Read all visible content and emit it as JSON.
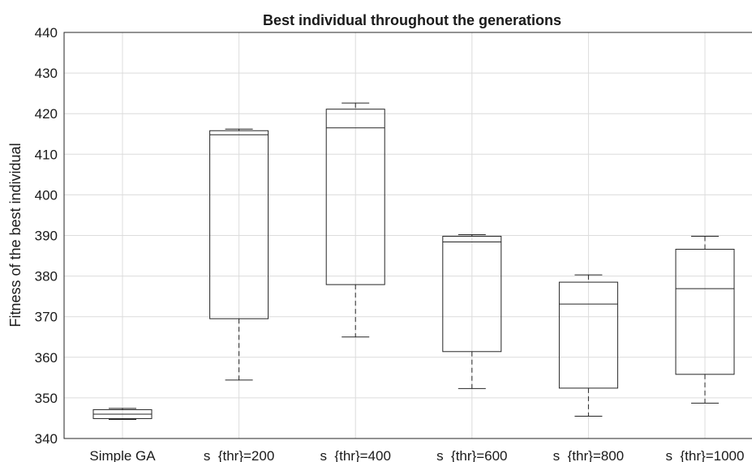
{
  "chart_data": {
    "type": "box",
    "title": "Best individual throughout the generations",
    "xlabel": "",
    "ylabel": "Fitness of the best individual",
    "ylim": [
      340,
      440
    ],
    "yticks": [
      340,
      350,
      360,
      370,
      380,
      390,
      400,
      410,
      420,
      430,
      440
    ],
    "grid": true,
    "categories": [
      "Simple GA",
      "s_{thr}=200",
      "s_{thr}=400",
      "s_{thr}=600",
      "s_{thr}=800",
      "s_{thr}=1000"
    ],
    "boxes": [
      {
        "min": 344.7,
        "q1": 344.9,
        "median": 346.0,
        "q3": 347.1,
        "max": 347.4
      },
      {
        "min": 354.4,
        "q1": 369.5,
        "median": 414.8,
        "q3": 415.8,
        "max": 416.2
      },
      {
        "min": 365.0,
        "q1": 377.9,
        "median": 416.5,
        "q3": 421.1,
        "max": 422.6
      },
      {
        "min": 352.3,
        "q1": 361.4,
        "median": 388.4,
        "q3": 389.8,
        "max": 390.2
      },
      {
        "min": 345.5,
        "q1": 352.4,
        "median": 373.1,
        "q3": 378.5,
        "max": 380.3
      },
      {
        "min": 348.7,
        "q1": 355.8,
        "median": 376.9,
        "q3": 386.6,
        "max": 389.8
      }
    ],
    "colors": {
      "stroke": "#262626",
      "grid": "#dcdcdc"
    }
  }
}
